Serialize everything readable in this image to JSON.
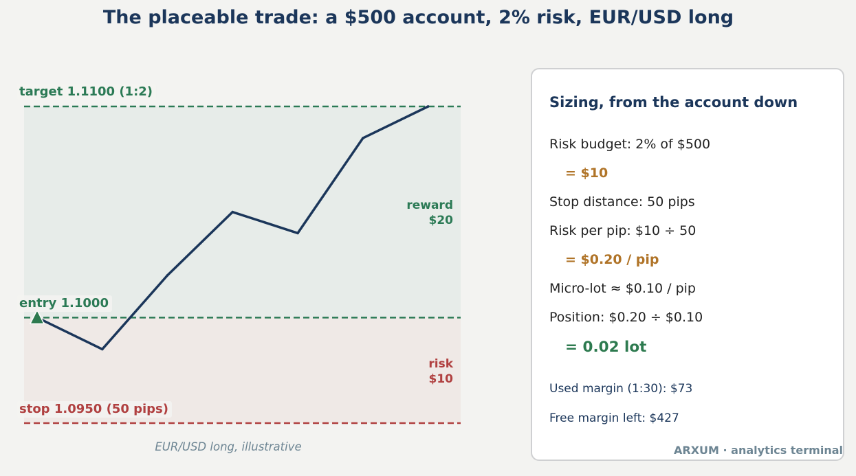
{
  "title": "The placeable trade: a $500 account, 2% risk, EUR/USD long",
  "chart_data": {
    "type": "line",
    "caption": "EUR/USD long, illustrative",
    "x": [
      0,
      1,
      2,
      3,
      4,
      5,
      6
    ],
    "y": [
      1.1,
      1.0985,
      1.102,
      1.105,
      1.104,
      1.1085,
      1.11
    ],
    "ylim": [
      1.095,
      1.11
    ],
    "grid": false,
    "levels": {
      "target": {
        "value": 1.11,
        "label": "target  1.1100  (1:2)",
        "color": "#2b7a55"
      },
      "entry": {
        "value": 1.1,
        "label": "entry  1.1000",
        "color": "#2b7a55"
      },
      "stop": {
        "value": 1.095,
        "label": "stop  1.0950  (50 pips)",
        "color": "#b04040"
      }
    },
    "zones": {
      "reward": {
        "line1": "reward",
        "line2": "$20",
        "color": "#2b7a55",
        "fill": "#e7ece9"
      },
      "risk": {
        "line1": "risk",
        "line2": "$10",
        "color": "#b04040",
        "fill": "#efe9e6"
      }
    },
    "line_color": "#1b365a",
    "entry_marker_color": "#2d7a4f"
  },
  "sizing": {
    "title": "Sizing, from the account down",
    "risk_budget": "Risk budget:  2% of $500",
    "risk_budget_result": "=  $10",
    "stop_distance": "Stop distance:  50 pips",
    "risk_per_pip": "Risk per pip:  $10 ÷ 50",
    "risk_per_pip_result": "=  $0.20 / pip",
    "micro_lot": "Micro-lot ≈ $0.10 / pip",
    "position": "Position:  $0.20 ÷ $0.10",
    "position_result": "=  0.02 lot",
    "used_margin": "Used margin (1:30):  $73",
    "free_margin": "Free margin left:  $427"
  },
  "brand": "ARXUM · analytics terminal"
}
